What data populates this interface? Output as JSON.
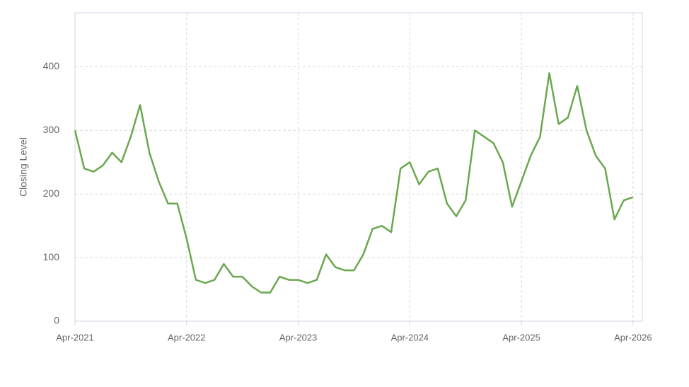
{
  "chart_data": {
    "type": "line",
    "y_label": "Closing Level",
    "x": [
      "Apr-2021",
      "May-2021",
      "Jun-2021",
      "Jul-2021",
      "Aug-2021",
      "Sep-2021",
      "Oct-2021",
      "Nov-2021",
      "Dec-2021",
      "Jan-2022",
      "Feb-2022",
      "Mar-2022",
      "Apr-2022",
      "May-2022",
      "Jun-2022",
      "Jul-2022",
      "Aug-2022",
      "Sep-2022",
      "Oct-2022",
      "Nov-2022",
      "Dec-2022",
      "Jan-2023",
      "Feb-2023",
      "Mar-2023",
      "Apr-2023",
      "May-2023",
      "Jun-2023",
      "Jul-2023",
      "Aug-2023",
      "Sep-2023",
      "Oct-2023",
      "Nov-2023",
      "Dec-2023",
      "Jan-2024",
      "Feb-2024",
      "Mar-2024",
      "Apr-2024",
      "May-2024",
      "Jun-2024",
      "Jul-2024",
      "Aug-2024",
      "Sep-2024",
      "Oct-2024",
      "Nov-2024",
      "Dec-2024",
      "Jan-2025",
      "Feb-2025",
      "Mar-2025",
      "Apr-2025",
      "May-2025",
      "Jun-2025",
      "Jul-2025",
      "Aug-2025",
      "Sep-2025",
      "Oct-2025",
      "Nov-2025",
      "Dec-2025",
      "Jan-2026",
      "Feb-2026",
      "Mar-2026",
      "Apr-2026"
    ],
    "series": [
      {
        "name": "Closing Level",
        "color": "#6aa84f",
        "values": [
          300,
          240,
          235,
          245,
          265,
          250,
          290,
          340,
          265,
          220,
          185,
          185,
          130,
          65,
          60,
          65,
          90,
          70,
          70,
          55,
          45,
          45,
          70,
          65,
          65,
          60,
          65,
          105,
          85,
          80,
          80,
          105,
          145,
          150,
          140,
          240,
          250,
          215,
          235,
          240,
          185,
          165,
          190,
          300,
          290,
          280,
          250,
          180,
          220,
          260,
          290,
          390,
          310,
          320,
          370,
          300,
          260,
          240,
          160,
          190,
          195
        ]
      }
    ],
    "xlim": [
      "Apr-2021",
      "May-2026"
    ],
    "xticks": [
      "Apr-2021",
      "Apr-2022",
      "Apr-2023",
      "Apr-2024",
      "Apr-2025",
      "Apr-2026"
    ],
    "ylim": [
      0,
      485
    ],
    "yticks": [
      0,
      100,
      200,
      300,
      400
    ],
    "grid": true
  }
}
